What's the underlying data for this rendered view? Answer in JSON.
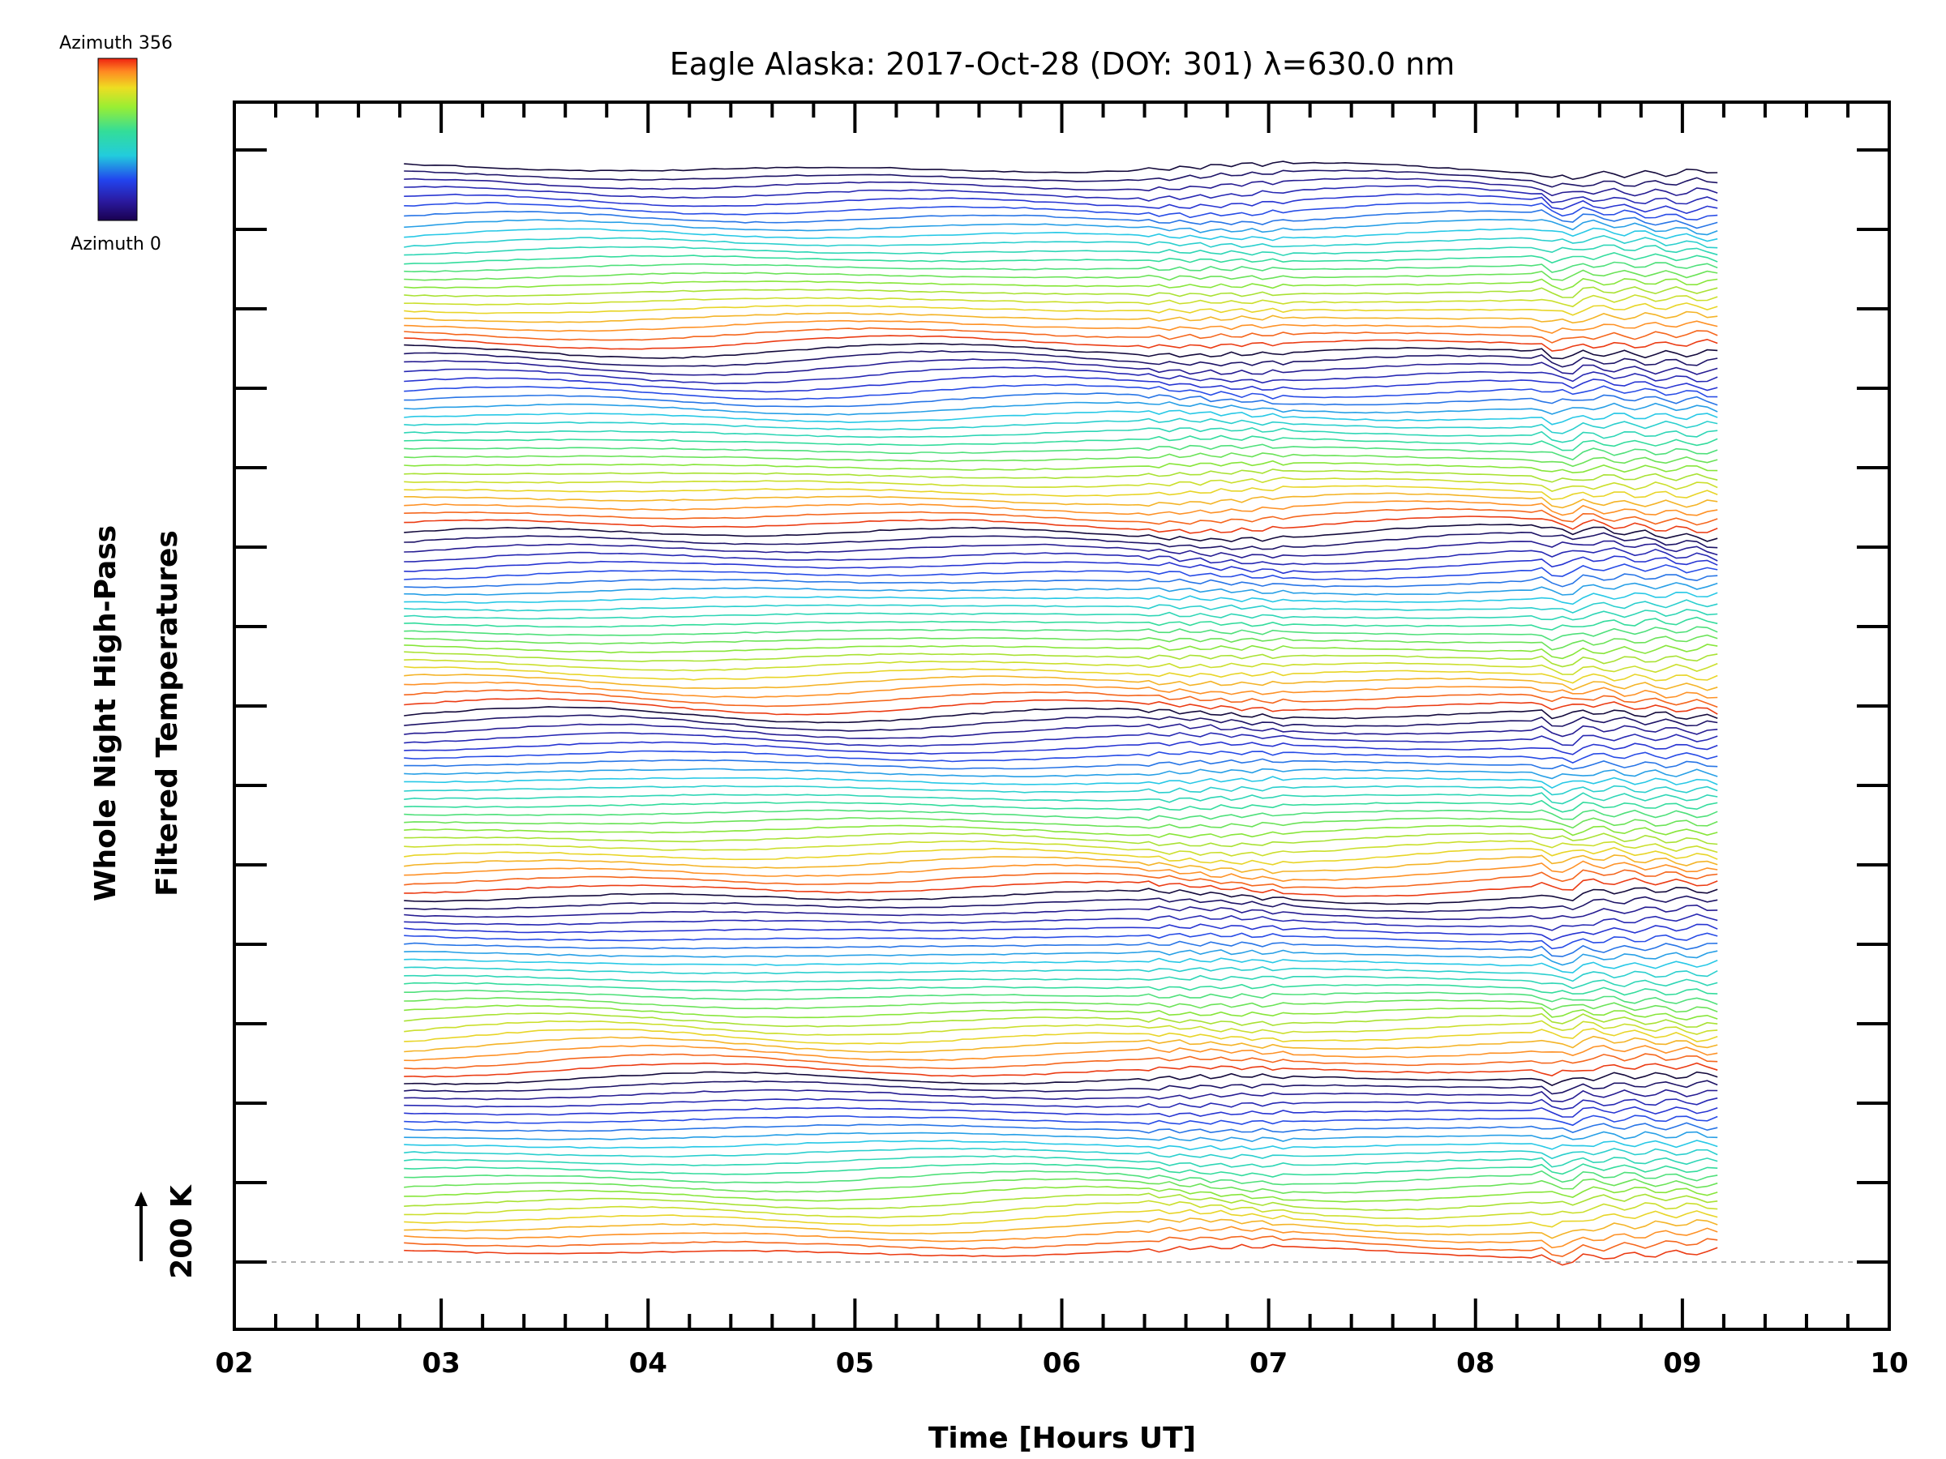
{
  "chart_data": {
    "type": "line",
    "title": "Eagle Alaska: 2017-Oct-28 (DOY: 301) λ=630.0 nm",
    "xlabel": "Time [Hours UT]",
    "ylabel_line1": "Whole Night High-Pass",
    "ylabel_line2": "Filtered Temperatures",
    "xlim": [
      2,
      10
    ],
    "x_ticks": [
      "02",
      "03",
      "04",
      "05",
      "06",
      "07",
      "08",
      "09",
      "10"
    ],
    "data_x_range": [
      2.82,
      9.17
    ],
    "scale_label": "200 K",
    "scale_kelvin": 200,
    "colorbar": {
      "top_label": "Azimuth 356",
      "bottom_label": "Azimuth 0",
      "azimuth_min": 0,
      "azimuth_max": 356
    },
    "series_count": 132,
    "series_groups": 6,
    "series_per_group": 22,
    "colors": {
      "baseline": "#999999",
      "frame": "#000000"
    }
  }
}
